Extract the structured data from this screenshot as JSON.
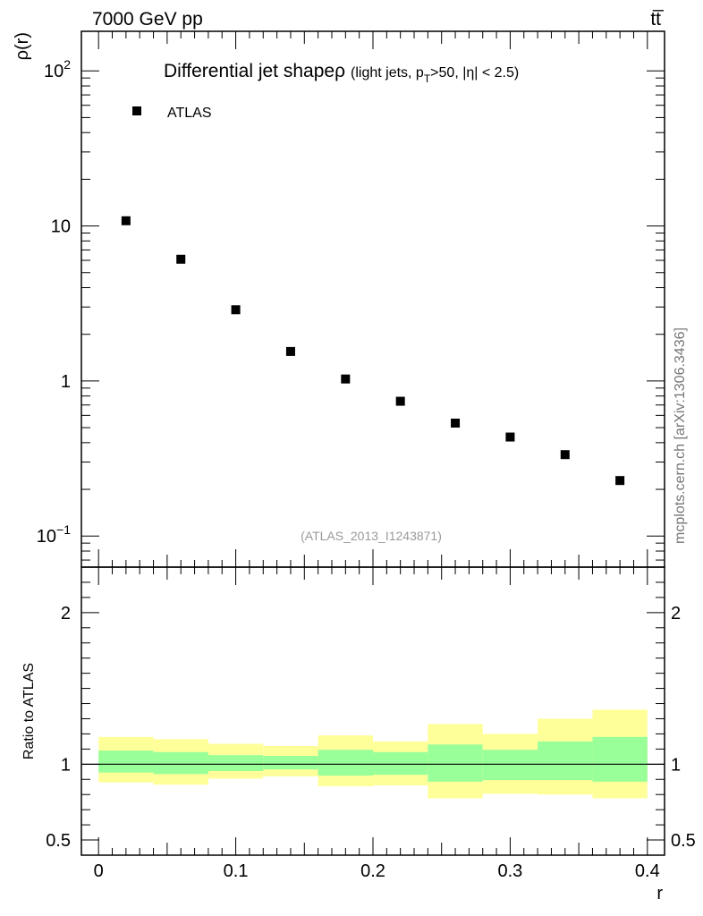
{
  "header": {
    "left": "7000 GeV pp",
    "right": "tt̅"
  },
  "side_label": "mcplots.cern.ch [arXiv:1306.3436]",
  "colors": {
    "marker": "#000000",
    "band_inner": "#99ff99",
    "band_outer": "#ffff99",
    "ref_line": "#000000",
    "watermark": "#999999"
  },
  "chart_data": [
    {
      "type": "scatter",
      "title_main": "Differential jet shape",
      "title_rho": "ρ",
      "title_paren": "(light jets, p",
      "title_sub": "T",
      "title_rest": ">50, |η| < 2.5)",
      "ylabel": "ρ(r)",
      "yscale": "log",
      "ylim": [
        0.063,
        180
      ],
      "xlim": [
        -0.0125,
        0.4125
      ],
      "yticks": [
        {
          "value": 0.1,
          "base": "10",
          "exp": "−1"
        },
        {
          "value": 1,
          "base": "1",
          "exp": ""
        },
        {
          "value": 10,
          "base": "10",
          "exp": ""
        },
        {
          "value": 100,
          "base": "10",
          "exp": "2"
        }
      ],
      "legend": {
        "label": "ATLAS",
        "placement": "top-left"
      },
      "watermark": "(ATLAS_2013_I1243871)",
      "series": [
        {
          "name": "ATLAS",
          "x": [
            0.02,
            0.06,
            0.1,
            0.14,
            0.18,
            0.22,
            0.26,
            0.3,
            0.34,
            0.38
          ],
          "y": [
            10.8,
            6.1,
            2.88,
            1.55,
            1.03,
            0.74,
            0.535,
            0.435,
            0.335,
            0.228
          ]
        }
      ]
    },
    {
      "type": "area",
      "ylabel": "Ratio to ATLAS",
      "xlabel": "r",
      "ylim": [
        0.4,
        2.3
      ],
      "xlim": [
        -0.0125,
        0.4125
      ],
      "xticks": [
        "0",
        "0.1",
        "0.2",
        "0.3",
        "0.4"
      ],
      "yticks": [
        "0.5",
        "1",
        "2"
      ],
      "reference": 1,
      "bins": [
        {
          "lo": 0.0,
          "hi": 0.04,
          "inner": [
            0.945,
            1.09
          ],
          "outer": [
            0.88,
            1.18
          ]
        },
        {
          "lo": 0.04,
          "hi": 0.08,
          "inner": [
            0.935,
            1.08
          ],
          "outer": [
            0.865,
            1.165
          ]
        },
        {
          "lo": 0.08,
          "hi": 0.12,
          "inner": [
            0.955,
            1.06
          ],
          "outer": [
            0.905,
            1.135
          ]
        },
        {
          "lo": 0.12,
          "hi": 0.16,
          "inner": [
            0.965,
            1.055
          ],
          "outer": [
            0.92,
            1.12
          ]
        },
        {
          "lo": 0.16,
          "hi": 0.2,
          "inner": [
            0.925,
            1.095
          ],
          "outer": [
            0.855,
            1.19
          ]
        },
        {
          "lo": 0.2,
          "hi": 0.24,
          "inner": [
            0.93,
            1.08
          ],
          "outer": [
            0.86,
            1.15
          ]
        },
        {
          "lo": 0.24,
          "hi": 0.28,
          "inner": [
            0.885,
            1.13
          ],
          "outer": [
            0.775,
            1.265
          ]
        },
        {
          "lo": 0.28,
          "hi": 0.32,
          "inner": [
            0.895,
            1.095
          ],
          "outer": [
            0.805,
            1.2
          ]
        },
        {
          "lo": 0.32,
          "hi": 0.36,
          "inner": [
            0.895,
            1.15
          ],
          "outer": [
            0.8,
            1.3
          ]
        },
        {
          "lo": 0.36,
          "hi": 0.4,
          "inner": [
            0.885,
            1.18
          ],
          "outer": [
            0.775,
            1.36
          ]
        }
      ]
    }
  ]
}
